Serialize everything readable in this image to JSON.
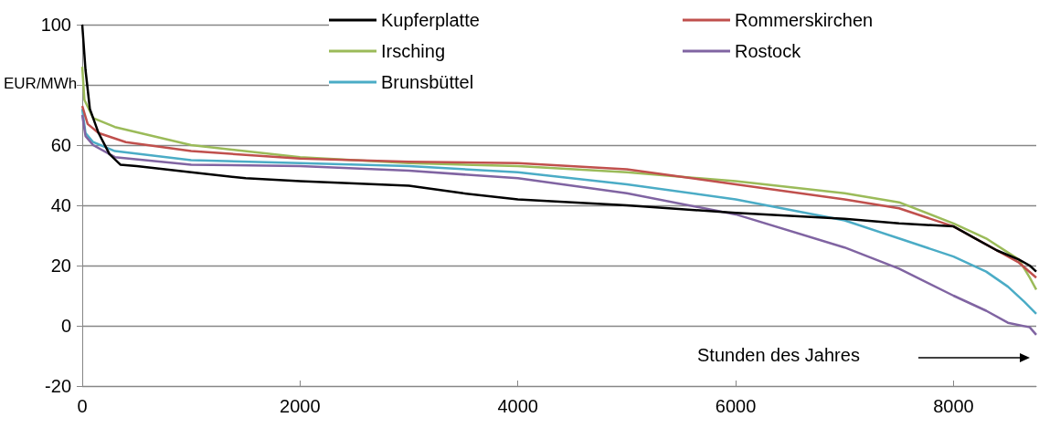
{
  "chart_data": {
    "type": "line",
    "ylabel": "EUR/MWh",
    "annotations": [
      "Stunden des Jahres"
    ],
    "xlim": [
      0,
      8760
    ],
    "xticks": [
      0,
      2000,
      4000,
      6000,
      8000
    ],
    "ylim": [
      -20,
      100
    ],
    "yticks": [
      -20,
      0,
      20,
      40,
      60,
      {
        "value": 80,
        "label": null
      },
      100
    ],
    "grid": "y",
    "legend": "top right",
    "marker": "none",
    "line_style": "solid",
    "series": [
      {
        "name": "Kupferplatte",
        "color": "#000000",
        "x": [
          0,
          30,
          70,
          150,
          250,
          350,
          500,
          1000,
          1500,
          2000,
          3000,
          3500,
          4000,
          5000,
          6000,
          7000,
          7500,
          8000,
          8200,
          8400,
          8600,
          8700,
          8760
        ],
        "values": [
          100,
          85,
          72,
          64,
          57,
          53.5,
          53,
          51,
          49,
          48,
          46.5,
          44,
          42,
          40,
          37.5,
          35.5,
          34,
          33,
          29,
          25,
          22,
          20,
          18
        ]
      },
      {
        "name": "Rommerskirchen",
        "color": "#c0504d",
        "x": [
          0,
          50,
          150,
          400,
          1000,
          2000,
          3000,
          4000,
          5000,
          6000,
          7000,
          7500,
          8000,
          8300,
          8600,
          8760
        ],
        "values": [
          73,
          67,
          64,
          61,
          58,
          55.5,
          54.5,
          54,
          52,
          47,
          42,
          39,
          33,
          27,
          21,
          16
        ]
      },
      {
        "name": "Irsching",
        "color": "#9bbb59",
        "x": [
          0,
          20,
          100,
          300,
          1000,
          2000,
          3000,
          4000,
          5000,
          6000,
          7000,
          7500,
          8000,
          8300,
          8600,
          8700,
          8760
        ],
        "values": [
          86,
          75,
          69,
          66,
          60,
          56,
          54,
          53,
          51,
          48,
          44,
          41,
          34,
          29,
          22,
          16,
          12
        ]
      },
      {
        "name": "Rostock",
        "color": "#8064a2",
        "x": [
          0,
          30,
          100,
          300,
          1000,
          2000,
          3000,
          4000,
          5000,
          6000,
          7000,
          7500,
          8000,
          8300,
          8500,
          8700,
          8760
        ],
        "values": [
          70,
          63,
          60,
          56,
          53.5,
          53,
          51.5,
          49,
          44,
          37,
          26,
          19,
          10,
          5,
          1,
          -0.5,
          -3
        ]
      },
      {
        "name": "Brunsbüttel",
        "color": "#4bacc6",
        "x": [
          0,
          30,
          100,
          300,
          1000,
          2000,
          3000,
          4000,
          5000,
          6000,
          7000,
          7500,
          8000,
          8300,
          8500,
          8650,
          8760
        ],
        "values": [
          72,
          64,
          61,
          58,
          55,
          54,
          53,
          51,
          47,
          42,
          35,
          29,
          23,
          18,
          13,
          8,
          4
        ]
      }
    ]
  }
}
